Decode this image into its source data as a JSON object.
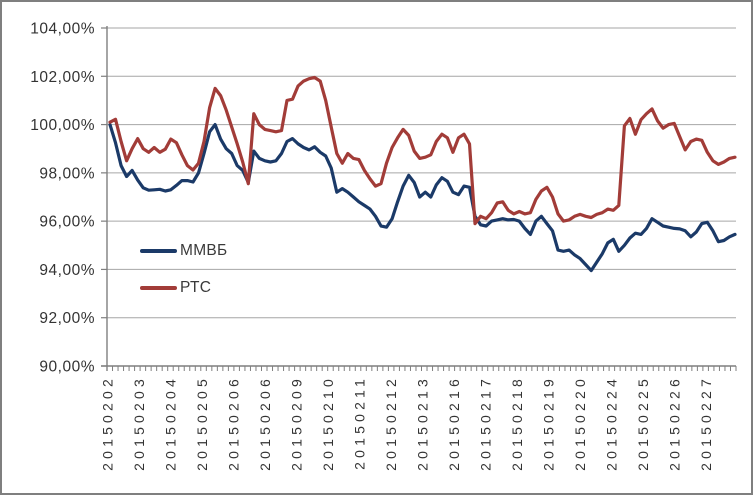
{
  "colors": {
    "grid": "#a6a6a6",
    "axis": "#7f7f7f",
    "tick": "#7f7f7f",
    "label_text": "#333333",
    "frame_border": "#7f7f7f",
    "background": "#ffffff",
    "mmvb_line": "#1b3a68",
    "rts_line": "#a23c38"
  },
  "legend": {
    "items": [
      {
        "label": "ММВБ"
      },
      {
        "label": "РТС"
      }
    ]
  },
  "chart_data": {
    "type": "line",
    "title": "",
    "xlabel": "",
    "ylabel": "",
    "ylim": [
      90,
      104
    ],
    "y_tick_step": 2,
    "grid": true,
    "legend_position": "inside-left",
    "y_tick_labels": [
      "104,00%",
      "102,00%",
      "100,00%",
      "98,00%",
      "96,00%",
      "94,00%",
      "92,00%",
      "90,00%"
    ],
    "x_tick_labels": [
      "20150202",
      "20150203",
      "20150204",
      "20150205",
      "20150206",
      "20150206",
      "20150209",
      "20150210",
      "20150211",
      "20150212",
      "20150213",
      "20150216",
      "20150217",
      "20150218",
      "20150219",
      "20150220",
      "20150224",
      "20150225",
      "20150226",
      "20150227"
    ],
    "series": [
      {
        "name": "ММВБ",
        "color": "#1b3a68",
        "values": [
          100.0,
          99.25,
          98.3,
          97.85,
          98.1,
          97.7,
          97.38,
          97.28,
          97.3,
          97.32,
          97.25,
          97.3,
          97.48,
          97.68,
          97.68,
          97.62,
          98.0,
          98.8,
          99.7,
          100.0,
          99.4,
          99.0,
          98.8,
          98.3,
          98.1,
          97.6,
          98.9,
          98.6,
          98.5,
          98.45,
          98.5,
          98.8,
          99.3,
          99.42,
          99.2,
          99.05,
          98.95,
          99.08,
          98.85,
          98.7,
          98.2,
          97.2,
          97.35,
          97.2,
          97.0,
          96.8,
          96.65,
          96.5,
          96.2,
          95.8,
          95.75,
          96.1,
          96.8,
          97.45,
          97.9,
          97.6,
          97.0,
          97.2,
          97.0,
          97.5,
          97.8,
          97.65,
          97.2,
          97.1,
          97.45,
          97.4,
          96.2,
          95.85,
          95.8,
          96.0,
          96.05,
          96.1,
          96.05,
          96.07,
          96.0,
          95.7,
          95.45,
          96.0,
          96.2,
          95.9,
          95.6,
          94.8,
          94.75,
          94.8,
          94.6,
          94.45,
          94.2,
          93.95,
          94.3,
          94.65,
          95.1,
          95.25,
          94.75,
          95.0,
          95.3,
          95.5,
          95.45,
          95.7,
          96.1,
          95.95,
          95.8,
          95.75,
          95.7,
          95.68,
          95.6,
          95.35,
          95.55,
          95.9,
          95.95,
          95.6,
          95.15,
          95.2,
          95.35,
          95.45
        ]
      },
      {
        "name": "РТС",
        "color": "#a23c38",
        "values": [
          100.1,
          100.22,
          99.3,
          98.5,
          99.0,
          99.42,
          99.0,
          98.85,
          99.05,
          98.85,
          98.98,
          99.4,
          99.25,
          98.75,
          98.3,
          98.12,
          98.4,
          99.3,
          100.7,
          101.5,
          101.2,
          100.6,
          99.9,
          99.2,
          98.45,
          97.55,
          100.45,
          100.0,
          99.8,
          99.75,
          99.7,
          99.75,
          101.0,
          101.05,
          101.6,
          101.8,
          101.9,
          101.95,
          101.8,
          101.0,
          99.9,
          98.8,
          98.4,
          98.8,
          98.6,
          98.55,
          98.1,
          97.75,
          97.45,
          97.55,
          98.4,
          99.05,
          99.45,
          99.8,
          99.55,
          98.9,
          98.6,
          98.65,
          98.75,
          99.3,
          99.6,
          99.45,
          98.85,
          99.45,
          99.6,
          99.2,
          95.9,
          96.2,
          96.1,
          96.35,
          96.75,
          96.8,
          96.45,
          96.3,
          96.4,
          96.3,
          96.35,
          96.9,
          97.25,
          97.4,
          97.0,
          96.3,
          96.0,
          96.05,
          96.2,
          96.28,
          96.2,
          96.15,
          96.28,
          96.35,
          96.5,
          96.45,
          96.65,
          99.95,
          100.25,
          99.6,
          100.2,
          100.45,
          100.65,
          100.15,
          99.85,
          100.0,
          100.05,
          99.5,
          98.95,
          99.3,
          99.4,
          99.35,
          98.85,
          98.5,
          98.35,
          98.45,
          98.6,
          98.65
        ]
      }
    ]
  }
}
